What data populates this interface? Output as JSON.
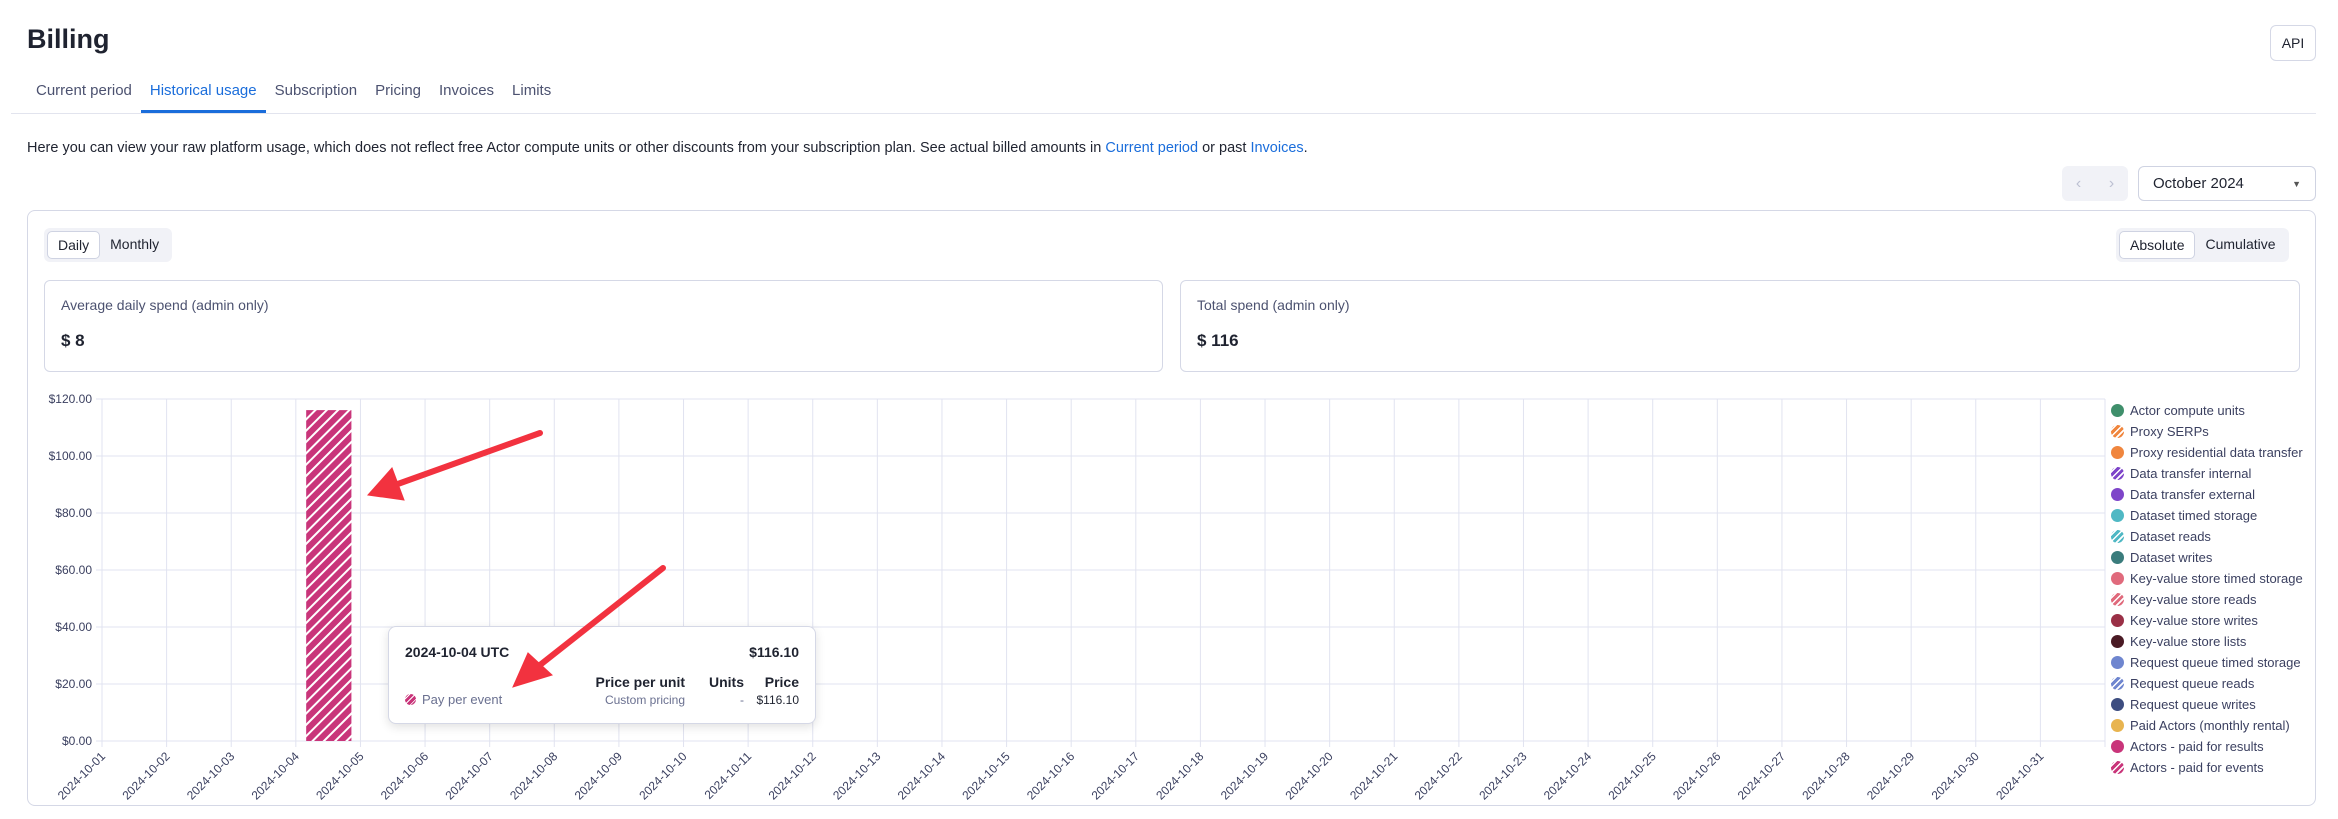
{
  "header": {
    "title": "Billing",
    "api_label": "API"
  },
  "tabs": [
    {
      "label": "Current period"
    },
    {
      "label": "Historical usage",
      "active": true
    },
    {
      "label": "Subscription"
    },
    {
      "label": "Pricing"
    },
    {
      "label": "Invoices"
    },
    {
      "label": "Limits"
    }
  ],
  "description": {
    "text": "Here you can view your raw platform usage, which does not reflect free Actor compute units or other discounts from your subscription plan. See actual billed amounts in ",
    "link1": "Current period",
    "mid": " or past ",
    "link2": "Invoices",
    "end": "."
  },
  "period": {
    "prev_icon": "chevron-left",
    "next_icon": "chevron-right",
    "selected": "October 2024"
  },
  "granularity": {
    "options": [
      "Daily",
      "Monthly"
    ],
    "selected": "Daily"
  },
  "mode": {
    "options": [
      "Absolute",
      "Cumulative"
    ],
    "selected": "Absolute"
  },
  "stats": {
    "avg_label": "Average daily spend (admin only)",
    "avg_value": "$ 8",
    "total_label": "Total spend (admin only)",
    "total_value": "$ 116"
  },
  "legend": [
    {
      "label": "Actor compute units",
      "color": "#3f8f6b",
      "hatched": false
    },
    {
      "label": "Proxy SERPs",
      "color": "#f0863e",
      "hatched": true
    },
    {
      "label": "Proxy residential data transfer",
      "color": "#f0863e",
      "hatched": false
    },
    {
      "label": "Data transfer internal",
      "color": "#7e45c9",
      "hatched": true
    },
    {
      "label": "Data transfer external",
      "color": "#7e45c9",
      "hatched": false
    },
    {
      "label": "Dataset timed storage",
      "color": "#4fb8c4",
      "hatched": false
    },
    {
      "label": "Dataset reads",
      "color": "#4fb8c4",
      "hatched": true
    },
    {
      "label": "Dataset writes",
      "color": "#3a7c7c",
      "hatched": false
    },
    {
      "label": "Key-value store timed storage",
      "color": "#e06a7c",
      "hatched": false
    },
    {
      "label": "Key-value store reads",
      "color": "#e06a7c",
      "hatched": true
    },
    {
      "label": "Key-value store writes",
      "color": "#9a3046",
      "hatched": false
    },
    {
      "label": "Key-value store lists",
      "color": "#4a1a24",
      "hatched": false
    },
    {
      "label": "Request queue timed storage",
      "color": "#6f86cf",
      "hatched": false
    },
    {
      "label": "Request queue reads",
      "color": "#6f86cf",
      "hatched": true
    },
    {
      "label": "Request queue writes",
      "color": "#3d4d80",
      "hatched": false
    },
    {
      "label": "Paid Actors (monthly rental)",
      "color": "#e8b44f",
      "hatched": false
    },
    {
      "label": "Actors - paid for results",
      "color": "#c9357a",
      "hatched": false
    },
    {
      "label": "Actors - paid for events",
      "color": "#c9357a",
      "hatched": true
    }
  ],
  "tooltip": {
    "date": "2024-10-04 UTC",
    "total": "$116.10",
    "col_price_per_unit": "Price per unit",
    "col_units": "Units",
    "col_price": "Price",
    "row": {
      "label": "Pay per event",
      "price_per_unit": "Custom pricing",
      "units": "-",
      "price": "$116.10"
    }
  },
  "chart_data": {
    "type": "bar",
    "stacked": true,
    "categories": [
      "2024-10-01",
      "2024-10-02",
      "2024-10-03",
      "2024-10-04",
      "2024-10-05",
      "2024-10-06",
      "2024-10-07",
      "2024-10-08",
      "2024-10-09",
      "2024-10-10",
      "2024-10-11",
      "2024-10-12",
      "2024-10-13",
      "2024-10-14",
      "2024-10-15",
      "2024-10-16",
      "2024-10-17",
      "2024-10-18",
      "2024-10-19",
      "2024-10-20",
      "2024-10-21",
      "2024-10-22",
      "2024-10-23",
      "2024-10-24",
      "2024-10-25",
      "2024-10-26",
      "2024-10-27",
      "2024-10-28",
      "2024-10-29",
      "2024-10-30",
      "2024-10-31"
    ],
    "series": [
      {
        "name": "Actors - paid for events",
        "color": "#c9357a",
        "values": [
          0,
          0,
          0,
          116.1,
          0,
          0,
          0,
          0,
          0,
          0,
          0,
          0,
          0,
          0,
          0,
          0,
          0,
          0,
          0,
          0,
          0,
          0,
          0,
          0,
          0,
          0,
          0,
          0,
          0,
          0,
          0
        ]
      }
    ],
    "yticks": [
      "$0.00",
      "$20.00",
      "$40.00",
      "$60.00",
      "$80.00",
      "$100.00",
      "$120.00"
    ],
    "ylim": [
      0,
      120
    ],
    "grid": true,
    "legend_position": "right"
  }
}
